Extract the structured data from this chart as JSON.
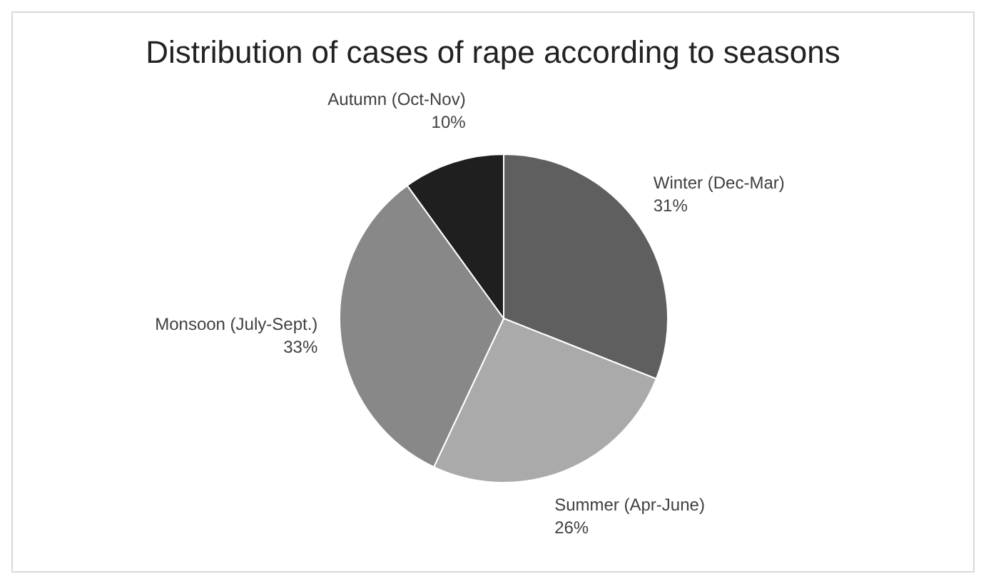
{
  "chart_data": {
    "type": "pie",
    "title": "Distribution of cases of rape according to seasons",
    "categories": [
      "Winter (Dec-Mar)",
      "Summer (Apr-June)",
      "Monsoon (July-Sept.)",
      "Autumn (Oct-Nov)"
    ],
    "values": [
      31,
      26,
      33,
      10
    ],
    "colors": [
      "#5f5f5f",
      "#aaaaaa",
      "#888888",
      "#1f1f1f"
    ],
    "value_labels": [
      "31%",
      "26%",
      "33%",
      "10%"
    ],
    "legend": false
  }
}
